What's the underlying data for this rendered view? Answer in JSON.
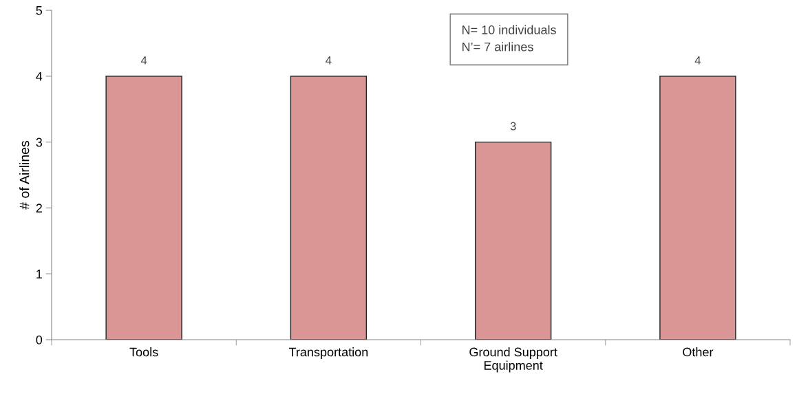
{
  "chart_data": {
    "type": "bar",
    "ylabel": "# of Airlines",
    "categories": [
      "Tools",
      "Transportation",
      "Ground Support\nEquipment",
      "Other"
    ],
    "values": [
      4,
      4,
      3,
      4
    ],
    "color": "#d99694",
    "ylim": [
      0,
      5
    ],
    "yticks": [
      0,
      1,
      2,
      3,
      4,
      5
    ],
    "grid": false,
    "data_labels": true,
    "annotations": [
      "N= 10 individuals\nN’= 7 airlines"
    ]
  }
}
